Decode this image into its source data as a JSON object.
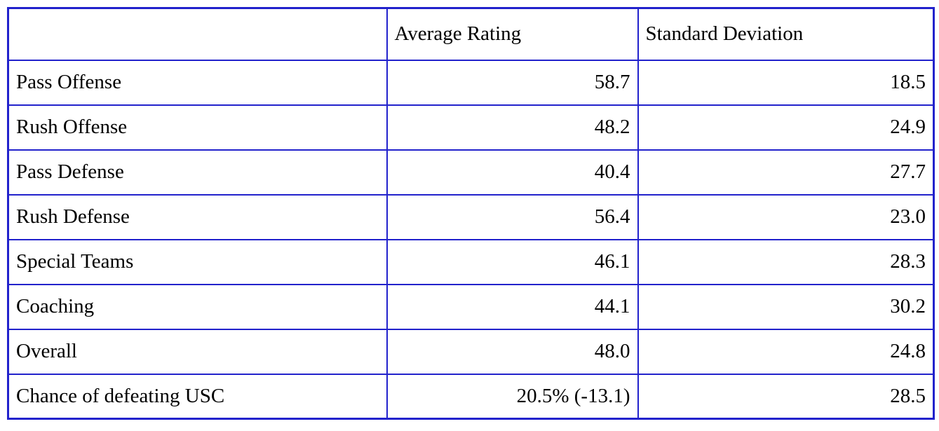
{
  "colors": {
    "border": "#2222cc",
    "text": "#000000",
    "background": "#ffffff"
  },
  "table": {
    "header": {
      "corner": "",
      "avg_col": "Average Rating",
      "sd_col": "Standard Deviation"
    },
    "rows": [
      {
        "label": "Pass Offense",
        "avg": "58.7",
        "sd": "18.5"
      },
      {
        "label": "Rush Offense",
        "avg": "48.2",
        "sd": "24.9"
      },
      {
        "label": "Pass Defense",
        "avg": "40.4",
        "sd": "27.7"
      },
      {
        "label": "Rush Defense",
        "avg": "56.4",
        "sd": "23.0"
      },
      {
        "label": "Special Teams",
        "avg": "46.1",
        "sd": "28.3"
      },
      {
        "label": "Coaching",
        "avg": "44.1",
        "sd": "30.2"
      },
      {
        "label": "Overall",
        "avg": "48.0",
        "sd": "24.8"
      },
      {
        "label": "Chance of defeating USC",
        "avg": "20.5% (-13.1)",
        "sd": "28.5"
      }
    ]
  }
}
